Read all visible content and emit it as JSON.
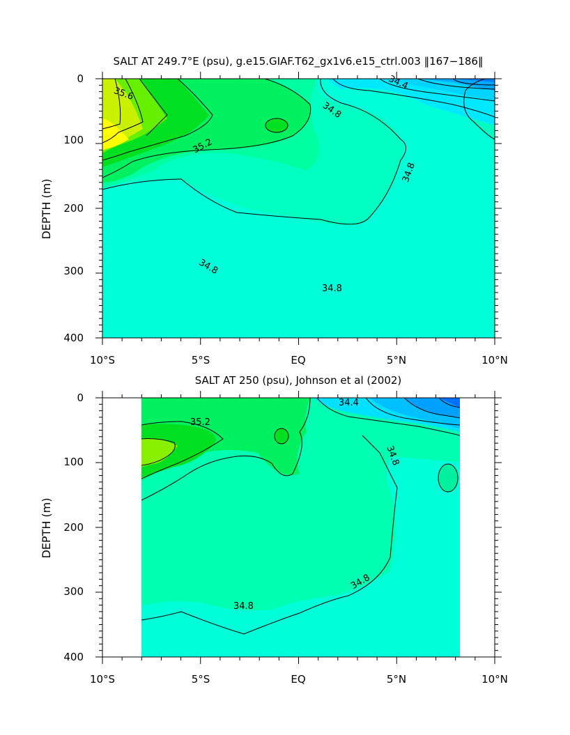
{
  "chart_data": [
    {
      "type": "contour",
      "title": "SALT AT 249.7°E (psu), g.e15.GIAF.T62_gx1v6.e15_ctrl.003 ‖167−186‖",
      "ylabel": "DEPTH (m)",
      "xlabel": "",
      "xlim": [
        -10,
        10
      ],
      "ylim": [
        400,
        0
      ],
      "x_ticks": [
        "10°S",
        "5°S",
        "EQ",
        "5°N",
        "10°N"
      ],
      "y_ticks": [
        "0",
        "100",
        "200",
        "300",
        "400"
      ],
      "contour_labels": [
        "35.6",
        "35.2",
        "34.8",
        "34.4"
      ],
      "data_x_range": [
        -10,
        10
      ]
    },
    {
      "type": "contour",
      "title": "SALT AT 250 (psu), Johnson et al (2002)",
      "ylabel": "DEPTH (m)",
      "xlabel": "",
      "xlim": [
        -10,
        10
      ],
      "ylim": [
        400,
        0
      ],
      "x_ticks": [
        "10°S",
        "5°S",
        "EQ",
        "5°N",
        "10°N"
      ],
      "y_ticks": [
        "0",
        "100",
        "200",
        "300",
        "400"
      ],
      "contour_labels": [
        "35.2",
        "34.4",
        "34.8",
        "34.8",
        "34.8"
      ],
      "data_x_range": [
        -8,
        8.2
      ]
    }
  ]
}
